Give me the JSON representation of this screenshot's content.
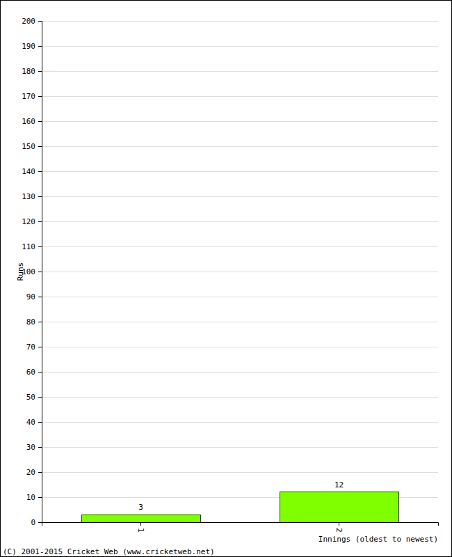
{
  "chart_data": {
    "type": "bar",
    "y_label": "Runs",
    "x_label": "Innings (oldest to newest)",
    "annotations": [
      "(C) 2001-2015 Cricket Web (www.cricketweb.net)"
    ],
    "categories": [
      "1",
      "2"
    ],
    "values": [
      3,
      12
    ],
    "color": "#80ff00",
    "ylim": [
      0,
      200
    ],
    "yticks": [
      0,
      10,
      20,
      30,
      40,
      50,
      60,
      70,
      80,
      90,
      100,
      110,
      120,
      130,
      140,
      150,
      160,
      170,
      180,
      190,
      200
    ],
    "grid": true,
    "data_labels": true
  }
}
